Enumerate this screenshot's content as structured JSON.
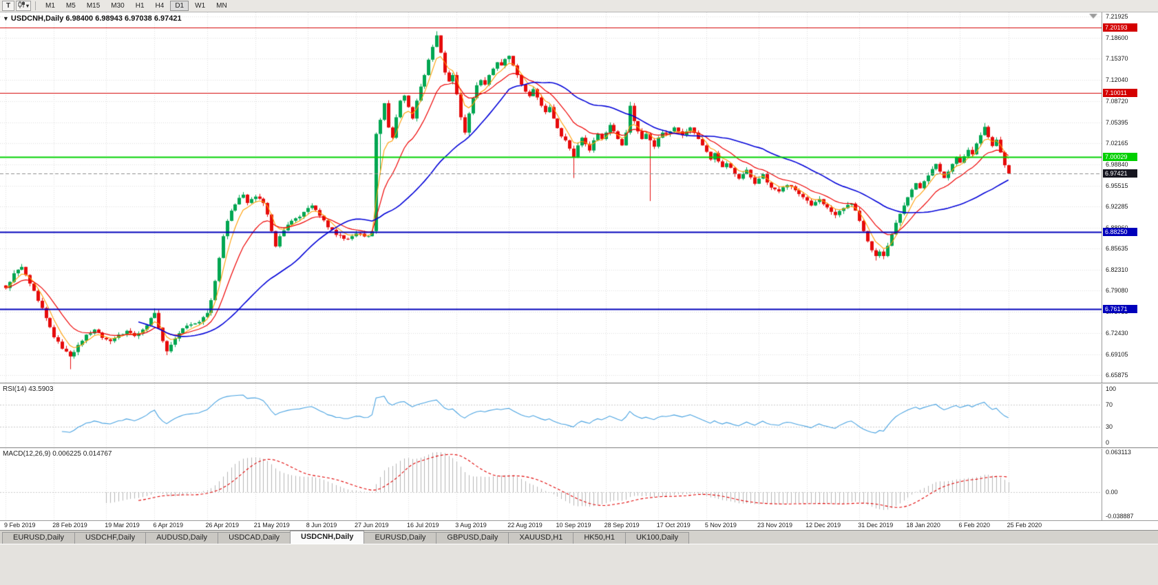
{
  "toolbar": {
    "tool_button": "T",
    "dropdown_caret": "▾",
    "timeframes": [
      "M1",
      "M5",
      "M15",
      "M30",
      "H1",
      "H4",
      "D1",
      "W1",
      "MN"
    ],
    "active_timeframe": "D1"
  },
  "chart": {
    "title_symbol": "USDCNH,Daily",
    "title_ohlc": "6.98400 6.98943 6.97038 6.97421",
    "price_axis_labels": [
      "7.21925",
      "7.18600",
      "7.15370",
      "7.12040",
      "7.08720",
      "7.05395",
      "7.02165",
      "6.98840",
      "6.95515",
      "6.92285",
      "6.88960",
      "6.85635",
      "6.82310",
      "6.79080",
      "6.75755",
      "6.72430",
      "6.69105",
      "6.65875"
    ],
    "date_axis_labels": [
      "9 Feb 2019",
      "28 Feb 2019",
      "19 Mar 2019",
      "6 Apr 2019",
      "26 Apr 2019",
      "21 May 2019",
      "8 Jun 2019",
      "27 Jun 2019",
      "16 Jul 2019",
      "3 Aug 2019",
      "22 Aug 2019",
      "10 Sep 2019",
      "28 Sep 2019",
      "17 Oct 2019",
      "5 Nov 2019",
      "23 Nov 2019",
      "12 Dec 2019",
      "31 Dec 2019",
      "18 Jan 2020",
      "6 Feb 2020",
      "25 Feb 2020"
    ],
    "hlines": [
      {
        "price": 7.20193,
        "label": "7.20193",
        "color": "#d40000",
        "width": 1
      },
      {
        "price": 7.10011,
        "label": "7.10011",
        "color": "#d40000",
        "width": 1
      },
      {
        "price": 7.00029,
        "label": "7.00029",
        "color": "#00d000",
        "width": 2
      },
      {
        "price": 6.8825,
        "label": "6.88250",
        "color": "#0000bb",
        "width": 2
      },
      {
        "price": 6.76171,
        "label": "6.76171",
        "color": "#0000bb",
        "width": 2
      }
    ],
    "current_price": {
      "value": 6.97421,
      "label": "6.97421",
      "tag_color": "#15151f",
      "line_color": "#8c8c8c"
    }
  },
  "indicators": {
    "rsi": {
      "label": "RSI(14)",
      "value_text": "43.5903",
      "axis_labels": [
        "100",
        "70",
        "30",
        "0"
      ],
      "axis_values": [
        100,
        70,
        30,
        0
      ],
      "levels": [
        70,
        30
      ],
      "line_color": "#46a1e0"
    },
    "macd": {
      "label": "MACD(12,26,9)",
      "value_text": "0.006225 0.014767",
      "axis_labels": [
        "0.063113",
        "0.00",
        "-0.038887"
      ],
      "axis_values": [
        0.063113,
        0,
        -0.038887
      ],
      "axis_max": 0.063113,
      "axis_min": -0.038887,
      "histogram_color": "#b4b4b4",
      "signal_color": "#e00000"
    }
  },
  "tabs": {
    "items": [
      "EURUSD,Daily",
      "USDCHF,Daily",
      "AUDUSD,Daily",
      "USDCAD,Daily",
      "USDCNH,Daily",
      "EURUSD,Daily",
      "GBPUSD,Daily",
      "XAUUSD,H1",
      "HK50,H1",
      "UK100,Daily"
    ],
    "active_index": 4
  },
  "chart_data": {
    "type": "candlestick",
    "symbol": "USDCNH",
    "timeframe": "Daily",
    "last_ohlc": {
      "open": 6.984,
      "high": 6.98943,
      "low": 6.97038,
      "close": 6.97421
    },
    "bar_count": 250,
    "noise": 0.005,
    "price_axis_top": 7.226,
    "price_axis_bottom": 6.647,
    "key_levels": [
      7.20193,
      7.10011,
      7.00029,
      6.8825,
      6.76171
    ],
    "close_anchors": [
      [
        0,
        6.795
      ],
      [
        2,
        6.818
      ],
      [
        4,
        6.828
      ],
      [
        6,
        6.802
      ],
      [
        8,
        6.775
      ],
      [
        10,
        6.748
      ],
      [
        12,
        6.718
      ],
      [
        14,
        6.7
      ],
      [
        16,
        6.688
      ],
      [
        18,
        6.706
      ],
      [
        20,
        6.722
      ],
      [
        22,
        6.73
      ],
      [
        24,
        6.717
      ],
      [
        26,
        6.712
      ],
      [
        28,
        6.722
      ],
      [
        30,
        6.728
      ],
      [
        32,
        6.72
      ],
      [
        34,
        6.73
      ],
      [
        36,
        6.748
      ],
      [
        37,
        6.756
      ],
      [
        39,
        6.712
      ],
      [
        40,
        6.696
      ],
      [
        42,
        6.716
      ],
      [
        44,
        6.732
      ],
      [
        46,
        6.738
      ],
      [
        48,
        6.742
      ],
      [
        50,
        6.756
      ],
      [
        51,
        6.776
      ],
      [
        52,
        6.806
      ],
      [
        53,
        6.842
      ],
      [
        54,
        6.876
      ],
      [
        55,
        6.9
      ],
      [
        56,
        6.916
      ],
      [
        58,
        6.936
      ],
      [
        59,
        6.941
      ],
      [
        60,
        6.928
      ],
      [
        62,
        6.938
      ],
      [
        64,
        6.928
      ],
      [
        65,
        6.91
      ],
      [
        66,
        6.884
      ],
      [
        67,
        6.86
      ],
      [
        68,
        6.876
      ],
      [
        70,
        6.894
      ],
      [
        72,
        6.904
      ],
      [
        74,
        6.914
      ],
      [
        76,
        6.924
      ],
      [
        78,
        6.908
      ],
      [
        80,
        6.89
      ],
      [
        82,
        6.878
      ],
      [
        84,
        6.872
      ],
      [
        86,
        6.876
      ],
      [
        88,
        6.88
      ],
      [
        90,
        6.876
      ],
      [
        91,
        6.884
      ],
      [
        92,
        7.036
      ],
      [
        93,
        7.058
      ],
      [
        94,
        7.084
      ],
      [
        95,
        7.046
      ],
      [
        96,
        7.03
      ],
      [
        97,
        7.062
      ],
      [
        98,
        7.088
      ],
      [
        99,
        7.096
      ],
      [
        100,
        7.078
      ],
      [
        101,
        7.06
      ],
      [
        102,
        7.088
      ],
      [
        103,
        7.11
      ],
      [
        104,
        7.128
      ],
      [
        105,
        7.152
      ],
      [
        106,
        7.172
      ],
      [
        107,
        7.19
      ],
      [
        108,
        7.163
      ],
      [
        109,
        7.132
      ],
      [
        110,
        7.118
      ],
      [
        111,
        7.128
      ],
      [
        112,
        7.098
      ],
      [
        113,
        7.062
      ],
      [
        114,
        7.038
      ],
      [
        115,
        7.068
      ],
      [
        116,
        7.092
      ],
      [
        117,
        7.112
      ],
      [
        118,
        7.12
      ],
      [
        119,
        7.113
      ],
      [
        120,
        7.128
      ],
      [
        121,
        7.138
      ],
      [
        122,
        7.148
      ],
      [
        123,
        7.143
      ],
      [
        124,
        7.153
      ],
      [
        125,
        7.158
      ],
      [
        126,
        7.143
      ],
      [
        127,
        7.128
      ],
      [
        128,
        7.113
      ],
      [
        129,
        7.102
      ],
      [
        130,
        7.095
      ],
      [
        131,
        7.106
      ],
      [
        132,
        7.093
      ],
      [
        133,
        7.08
      ],
      [
        134,
        7.07
      ],
      [
        135,
        7.078
      ],
      [
        136,
        7.06
      ],
      [
        137,
        7.045
      ],
      [
        138,
        7.032
      ],
      [
        139,
        7.026
      ],
      [
        140,
        7.013
      ],
      [
        141,
        7.0
      ],
      [
        142,
        7.018
      ],
      [
        143,
        7.03
      ],
      [
        144,
        7.02
      ],
      [
        145,
        7.01
      ],
      [
        146,
        7.026
      ],
      [
        147,
        7.036
      ],
      [
        148,
        7.028
      ],
      [
        149,
        7.038
      ],
      [
        150,
        7.05
      ],
      [
        151,
        7.04
      ],
      [
        152,
        7.028
      ],
      [
        153,
        7.018
      ],
      [
        154,
        7.038
      ],
      [
        155,
        7.08
      ],
      [
        156,
        7.056
      ],
      [
        157,
        7.04
      ],
      [
        158,
        7.028
      ],
      [
        159,
        7.036
      ],
      [
        160,
        7.026
      ],
      [
        161,
        7.016
      ],
      [
        162,
        7.03
      ],
      [
        163,
        7.038
      ],
      [
        164,
        7.036
      ],
      [
        165,
        7.04
      ],
      [
        166,
        7.046
      ],
      [
        167,
        7.04
      ],
      [
        168,
        7.034
      ],
      [
        169,
        7.04
      ],
      [
        170,
        7.046
      ],
      [
        171,
        7.038
      ],
      [
        172,
        7.028
      ],
      [
        173,
        7.018
      ],
      [
        174,
        7.008
      ],
      [
        175,
        6.996
      ],
      [
        176,
        7.006
      ],
      [
        177,
        6.993
      ],
      [
        178,
        6.984
      ],
      [
        179,
        6.99
      ],
      [
        180,
        6.983
      ],
      [
        181,
        6.973
      ],
      [
        182,
        6.966
      ],
      [
        183,
        6.973
      ],
      [
        184,
        6.98
      ],
      [
        185,
        6.968
      ],
      [
        186,
        6.958
      ],
      [
        187,
        6.966
      ],
      [
        188,
        6.973
      ],
      [
        189,
        6.96
      ],
      [
        190,
        6.952
      ],
      [
        192,
        6.946
      ],
      [
        194,
        6.956
      ],
      [
        196,
        6.948
      ],
      [
        198,
        6.937
      ],
      [
        200,
        6.924
      ],
      [
        202,
        6.934
      ],
      [
        204,
        6.921
      ],
      [
        206,
        6.909
      ],
      [
        208,
        6.92
      ],
      [
        210,
        6.927
      ],
      [
        211,
        6.916
      ],
      [
        212,
        6.9
      ],
      [
        213,
        6.884
      ],
      [
        214,
        6.868
      ],
      [
        215,
        6.854
      ],
      [
        216,
        6.845
      ],
      [
        217,
        6.852
      ],
      [
        218,
        6.845
      ],
      [
        219,
        6.861
      ],
      [
        220,
        6.879
      ],
      [
        221,
        6.897
      ],
      [
        222,
        6.911
      ],
      [
        223,
        6.924
      ],
      [
        224,
        6.937
      ],
      [
        225,
        6.949
      ],
      [
        226,
        6.959
      ],
      [
        227,
        6.951
      ],
      [
        228,
        6.962
      ],
      [
        229,
        6.971
      ],
      [
        230,
        6.981
      ],
      [
        231,
        6.989
      ],
      [
        232,
        6.977
      ],
      [
        233,
        6.967
      ],
      [
        234,
        6.977
      ],
      [
        235,
        6.989
      ],
      [
        236,
        6.999
      ],
      [
        237,
        6.991
      ],
      [
        238,
        7.001
      ],
      [
        239,
        7.011
      ],
      [
        240,
        7.004
      ],
      [
        241,
        7.021
      ],
      [
        242,
        7.034
      ],
      [
        243,
        7.047
      ],
      [
        244,
        7.031
      ],
      [
        245,
        7.017
      ],
      [
        246,
        7.027
      ],
      [
        247,
        7.007
      ],
      [
        248,
        6.987
      ],
      [
        249,
        6.9742
      ]
    ],
    "wick_overrides": [
      {
        "bar": 16,
        "low": 6.668
      },
      {
        "bar": 37,
        "high": 6.763
      },
      {
        "bar": 40,
        "low": 6.69
      },
      {
        "bar": 93,
        "low": 6.972
      },
      {
        "bar": 107,
        "high": 7.1965
      },
      {
        "bar": 141,
        "low": 6.967
      },
      {
        "bar": 155,
        "high": 7.086
      },
      {
        "bar": 160,
        "low": 6.931
      },
      {
        "bar": 216,
        "low": 6.838
      },
      {
        "bar": 218,
        "low": 6.84
      },
      {
        "bar": 243,
        "high": 7.053
      }
    ],
    "ma_periods": {
      "orange": 5,
      "red": 13,
      "blue": 34
    },
    "colors": {
      "up": "#00a651",
      "down": "#e60b0b",
      "ma_orange": "#ff9d00",
      "ma_red": "#ee0000",
      "ma_blue": "#0000d8",
      "grid": "#dbdbdb"
    }
  }
}
